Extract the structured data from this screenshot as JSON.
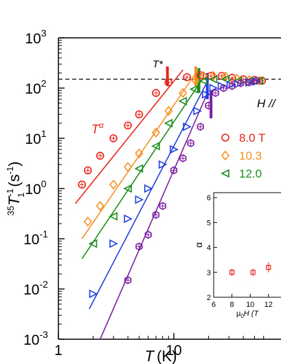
{
  "chart_data": [
    {
      "type": "scatter",
      "xlabel_var": "T",
      "xlabel_unit": "(K)",
      "ylabel_pre": "35",
      "ylabel_var": "T",
      "ylabel_sub": "1",
      "ylabel_sup": "-1",
      "ylabel_unit": "(s",
      "ylabel_unit_sup": "-1",
      "ylabel_unit_close": ")",
      "x_scale": "log",
      "y_scale": "log",
      "xlim": [
        1.0,
        60
      ],
      "ylim": [
        0.001,
        1000
      ],
      "x_ticks": [
        {
          "value": 1,
          "label": "1"
        },
        {
          "value": 10,
          "label": "10"
        }
      ],
      "y_ticks": [
        {
          "value": 1000,
          "base": "10",
          "exp": "3"
        },
        {
          "value": 100,
          "base": "10",
          "exp": "2"
        },
        {
          "value": 10,
          "base": "10",
          "exp": "1"
        },
        {
          "value": 1,
          "base": "10",
          "exp": "0"
        },
        {
          "value": 0.1,
          "base": "10",
          "exp": "-1"
        },
        {
          "value": 0.01,
          "base": "10",
          "exp": "-2"
        },
        {
          "value": 0.001,
          "base": "10",
          "exp": "-3"
        }
      ],
      "reference_line": {
        "y": 150,
        "style": "dashed"
      },
      "annotations": {
        "tstar": "T*",
        "talpha_base": "T",
        "talpha_sup": "α",
        "field": "H //"
      },
      "tstar_markers": [
        {
          "x": 8.8,
          "y_low": 110,
          "y_high": 270,
          "color": "#e8231b"
        },
        {
          "x": 15.5,
          "y_low": 110,
          "y_high": 270,
          "color": "#f5901e"
        },
        {
          "x": 16.5,
          "y_low": 80,
          "y_high": 250,
          "color": "#1a8c1a"
        },
        {
          "x": 19.5,
          "y_low": 60,
          "y_high": 200,
          "color": "#1f3fe0"
        },
        {
          "x": 21.0,
          "y_low": 25,
          "y_high": 90,
          "color": "#7b1fa2"
        }
      ],
      "series": [
        {
          "name": "8.0 T",
          "marker": "circle",
          "color": "#e8231b",
          "x": [
            1.6,
            1.8,
            2.3,
            3.0,
            4.0,
            5.0,
            7.0,
            9.0,
            13.0,
            17.0,
            21.0,
            26.0,
            32.0,
            40.0,
            50.0,
            58.0
          ],
          "y": [
            1.2,
            2.3,
            4.5,
            10.0,
            18.0,
            30.0,
            80.0,
            130.0,
            165.0,
            180.0,
            175.0,
            175.0,
            160.0,
            150.0,
            145.0,
            140.0
          ],
          "fit": {
            "x": [
              1.4,
              12.0
            ],
            "y": [
              0.5,
              230.0
            ]
          }
        },
        {
          "name": "10.3",
          "marker": "diamond",
          "color": "#f5901e",
          "x": [
            1.8,
            2.3,
            3.0,
            4.0,
            5.0,
            7.0,
            9.0,
            12.0,
            15.5,
            18.0,
            22.0,
            28.0,
            35.0,
            45.0,
            55.0
          ],
          "y": [
            0.22,
            0.45,
            1.2,
            2.7,
            5.0,
            13.0,
            35.0,
            80.0,
            140.0,
            175.0,
            175.0,
            170.0,
            155.0,
            145.0,
            140.0
          ],
          "fit": {
            "x": [
              1.6,
              16.0
            ],
            "y": [
              0.1,
              220.0
            ]
          }
        },
        {
          "name": "12.0",
          "marker": "triangle-left",
          "color": "#1a8c1a",
          "x": [
            2.0,
            3.0,
            4.0,
            5.0,
            7.0,
            9.0,
            12.0,
            15.0,
            18.0,
            22.0,
            28.0,
            36.0,
            45.0,
            55.0
          ],
          "y": [
            0.08,
            0.28,
            1.0,
            2.5,
            7.0,
            20.0,
            55.0,
            95.0,
            140.0,
            150.0,
            150.0,
            140.0,
            140.0,
            140.0
          ],
          "fit": {
            "x": [
              1.6,
              18.0
            ],
            "y": [
              0.04,
              160.0
            ]
          }
        },
        {
          "name": "",
          "marker": "triangle-right",
          "color": "#1f3fe0",
          "x": [
            2.0,
            3.0,
            4.0,
            5.0,
            6.0,
            8.0,
            10.0,
            13.0,
            16.0,
            19.0,
            22.0,
            26.0,
            31.0,
            36.0,
            45.0,
            52.0
          ],
          "y": [
            0.008,
            0.08,
            0.25,
            0.6,
            1.0,
            3.0,
            6.0,
            17.0,
            35.0,
            75.0,
            100.0,
            110.0,
            115.0,
            120.0,
            130.0,
            135.0
          ],
          "fit": {
            "x": [
              1.85,
              20.0
            ],
            "y": [
              0.004,
              150.0
            ]
          }
        },
        {
          "name": "",
          "marker": "hexagon",
          "color": "#7b1fa2",
          "x": [
            4.0,
            5.0,
            6.0,
            7.0,
            8.0,
            10.0,
            12.0,
            14.0,
            17.0,
            20.0,
            23.0,
            27.0,
            32.0,
            38.0,
            45.0,
            52.0
          ],
          "y": [
            0.015,
            0.07,
            0.12,
            0.3,
            0.45,
            2.3,
            4.0,
            8.0,
            17.0,
            45.0,
            80.0,
            100.0,
            110.0,
            125.0,
            130.0,
            140.0
          ],
          "fit": {
            "x": [
              2.3,
              20.0
            ],
            "y": [
              0.001,
              90.0
            ]
          }
        }
      ]
    },
    {
      "type": "scatter",
      "xlabel_pre": "μ",
      "xlabel_sub": "0",
      "xlabel_rest": "H (T",
      "ylabel": "α",
      "xlim": [
        6,
        13
      ],
      "ylim": [
        2,
        6.2
      ],
      "x_ticks": [
        6,
        8,
        10,
        12
      ],
      "y_ticks": [
        2,
        3,
        4,
        5,
        6
      ],
      "series": [
        {
          "name": "",
          "marker": "square",
          "color": "#e8231b",
          "x": [
            8.0,
            10.3,
            12.0
          ],
          "y": [
            3.0,
            3.0,
            3.2
          ],
          "err": [
            0.15,
            0.15,
            0.2
          ]
        }
      ]
    }
  ]
}
